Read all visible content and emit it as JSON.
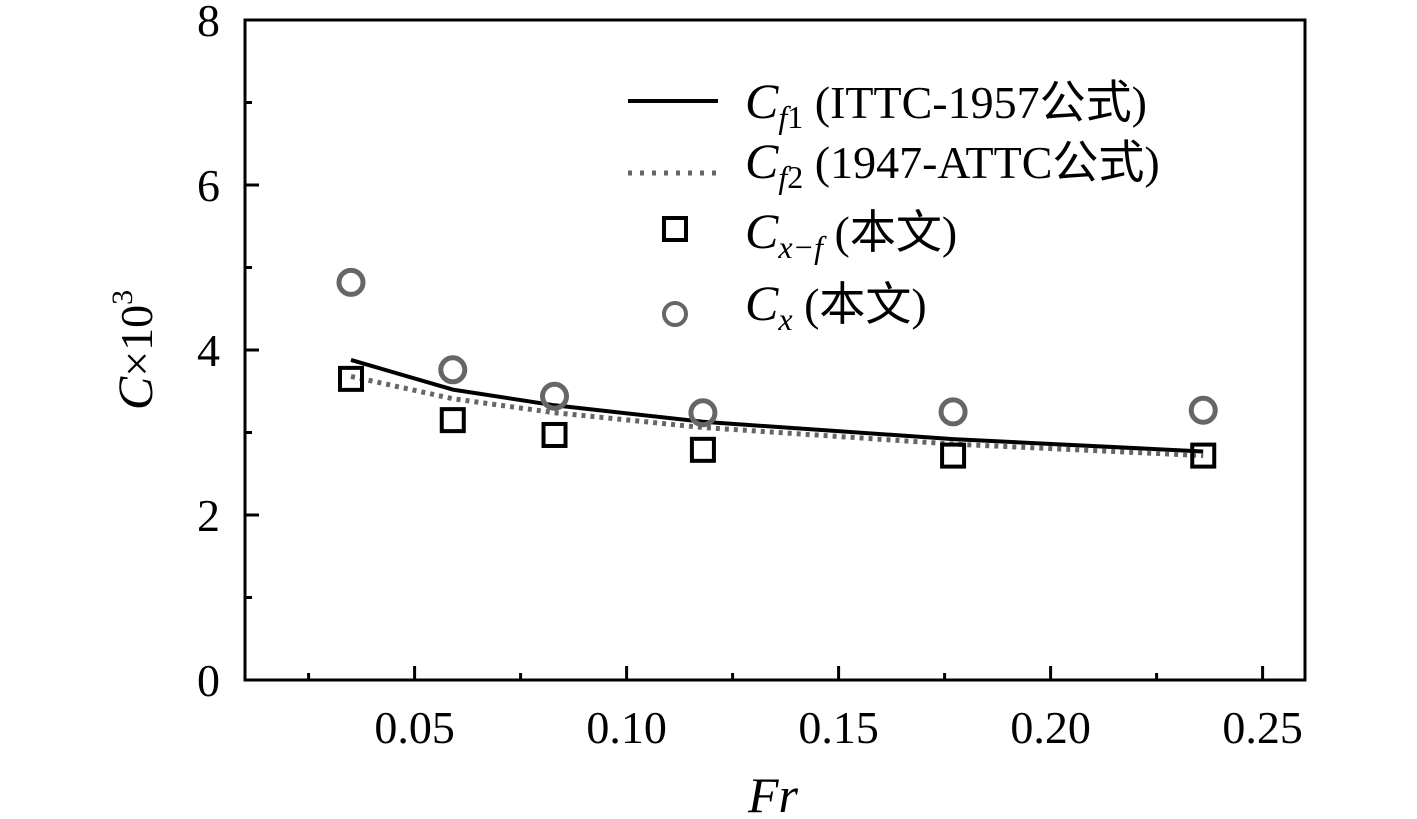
{
  "chart_data": {
    "type": "scatter",
    "xlabel": "Fr",
    "ylabel": {
      "symbol": "C",
      "times": "×10",
      "exp": "3"
    },
    "xlim": [
      0.01,
      0.26
    ],
    "ylim": [
      0,
      8
    ],
    "xticks": [
      {
        "value": 0.05,
        "label": "0.05"
      },
      {
        "value": 0.1,
        "label": "0.10"
      },
      {
        "value": 0.15,
        "label": "0.15"
      },
      {
        "value": 0.2,
        "label": "0.20"
      },
      {
        "value": 0.25,
        "label": "0.25"
      }
    ],
    "yticks": [
      {
        "value": 0,
        "label": "0"
      },
      {
        "value": 2,
        "label": "2"
      },
      {
        "value": 4,
        "label": "4"
      },
      {
        "value": 6,
        "label": "6"
      },
      {
        "value": 8,
        "label": "8"
      }
    ],
    "x_minor_ticks": [
      0.025,
      0.075,
      0.125,
      0.175,
      0.225
    ],
    "y_minor_ticks": [
      1,
      3,
      5,
      7
    ],
    "grid": false,
    "legend_position": "top-right",
    "series": [
      {
        "name": "Cf1",
        "legend": {
          "sym": "C",
          "sub": "f",
          "sub2": "1",
          "rest": " (ITTC-1957公式)"
        },
        "style": "solid-line",
        "color": "#000000",
        "x": [
          0.035,
          0.059,
          0.083,
          0.118,
          0.177,
          0.236
        ],
        "y": [
          3.88,
          3.52,
          3.33,
          3.13,
          2.92,
          2.77
        ]
      },
      {
        "name": "Cf2",
        "legend": {
          "sym": "C",
          "sub": "f",
          "sub2": "2",
          "rest": " (1947-ATTC公式)"
        },
        "style": "dotted-line",
        "color": "#666666",
        "x": [
          0.035,
          0.059,
          0.083,
          0.118,
          0.177,
          0.236
        ],
        "y": [
          3.68,
          3.41,
          3.24,
          3.06,
          2.86,
          2.72
        ]
      },
      {
        "name": "Cx-f",
        "legend": {
          "sym": "C",
          "sub": "x",
          "sub2": "−f",
          "rest": " (本文)"
        },
        "style": "square-marker",
        "color": "#000000",
        "x": [
          0.035,
          0.059,
          0.083,
          0.118,
          0.177,
          0.236
        ],
        "y": [
          3.65,
          3.15,
          2.97,
          2.79,
          2.72,
          2.72
        ]
      },
      {
        "name": "Cx",
        "legend": {
          "sym": "C",
          "sub": "x",
          "sub2": "",
          "rest": " (本文)"
        },
        "style": "circle-marker",
        "color": "#666666",
        "x": [
          0.035,
          0.059,
          0.083,
          0.118,
          0.177,
          0.236
        ],
        "y": [
          4.82,
          3.76,
          3.44,
          3.24,
          3.25,
          3.27
        ]
      }
    ]
  }
}
